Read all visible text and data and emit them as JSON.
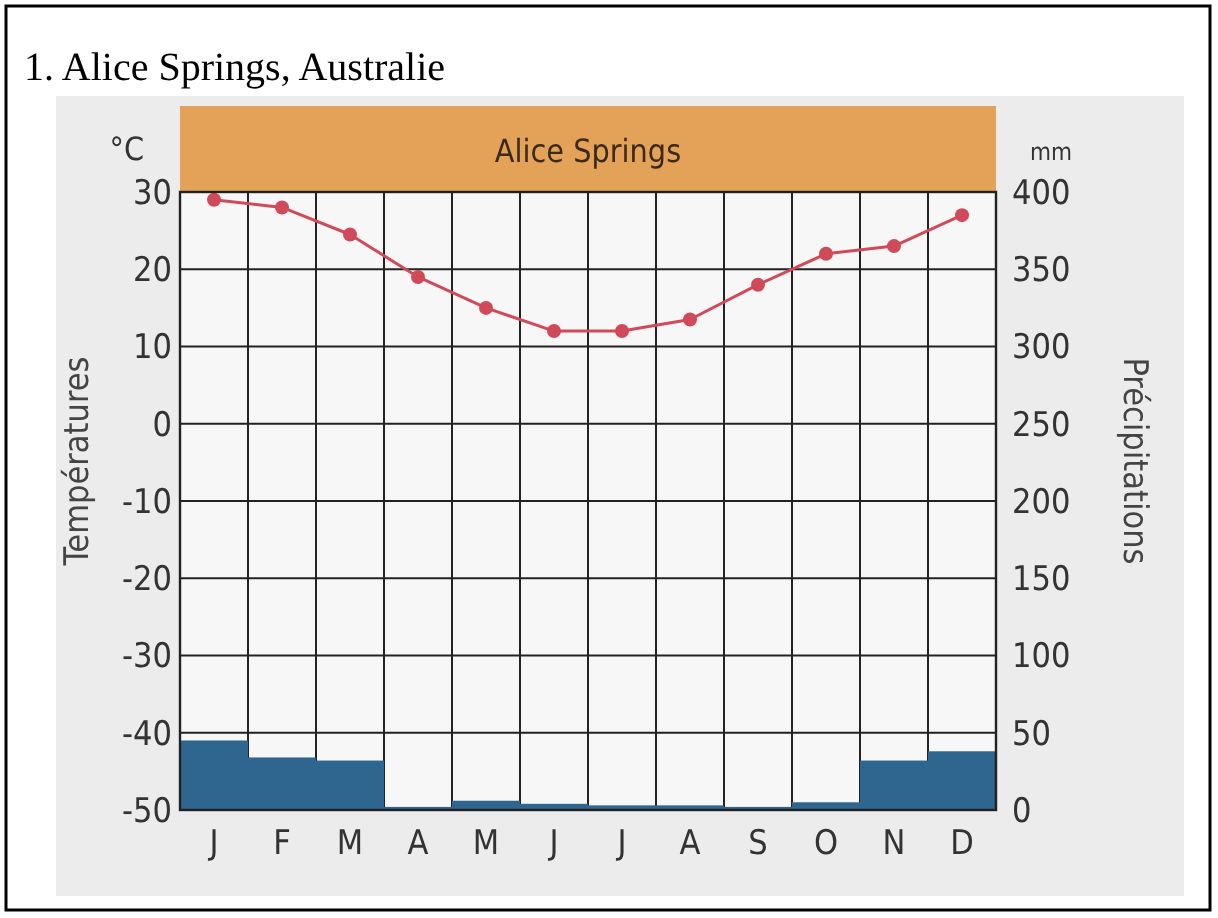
{
  "chart_data": {
    "type": "bar",
    "title": "1. Alice Springs, Australie",
    "subtitle": "Alice Springs",
    "ylabel": "Températures",
    "y2label": "Précipitations",
    "annotations": [
      "°C",
      "mm"
    ],
    "categories": [
      "J",
      "F",
      "M",
      "A",
      "M",
      "J",
      "J",
      "A",
      "S",
      "O",
      "N",
      "D"
    ],
    "series": [
      {
        "axis": "y2",
        "color": "#2f6690",
        "values": [
          45,
          34,
          32,
          2,
          6,
          4,
          3,
          3,
          2,
          5,
          32,
          38
        ]
      },
      {
        "type": "line",
        "axis": "y",
        "color": "#d04a5a",
        "marker": "circle",
        "values": [
          29,
          28,
          24.5,
          19,
          15,
          12,
          12,
          13.5,
          18,
          22,
          23,
          27
        ]
      }
    ],
    "ylim": [
      -50,
      30
    ],
    "yticks": [
      -50,
      -40,
      -30,
      -20,
      -10,
      0,
      10,
      20,
      30
    ],
    "y2lim": [
      0,
      400
    ],
    "y2ticks": [
      0,
      50,
      100,
      150,
      200,
      250,
      300,
      350,
      400
    ],
    "grid": true
  }
}
